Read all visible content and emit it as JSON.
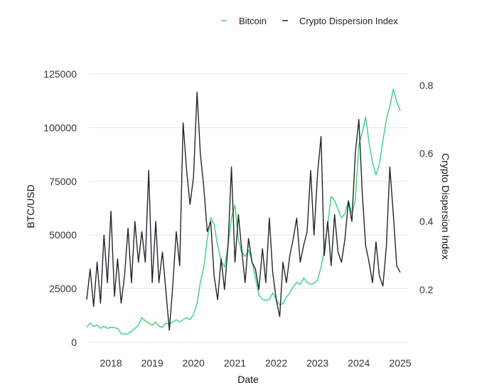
{
  "chart_data": {
    "type": "line",
    "xlabel": "Date",
    "x_ticks": [
      "2018",
      "2019",
      "2020",
      "2021",
      "2022",
      "2023",
      "2024",
      "2025"
    ],
    "x_range": [
      "2017-06",
      "2025-01"
    ],
    "ylabel_left": "BTC/USD",
    "y_left_ticks": [
      "0",
      "25000",
      "50000",
      "75000",
      "100000",
      "125000"
    ],
    "y_left_range": [
      0,
      125000
    ],
    "ylabel_right": "Crypto Dispersion Index",
    "y_right_ticks": [
      "0.2",
      "0.4",
      "0.6",
      "0.8"
    ],
    "y_right_range": [
      0.03,
      0.8
    ],
    "grid": "horizontal",
    "legend_position": "top-right",
    "series": [
      {
        "name": "Bitcoin",
        "axis": "left",
        "color": "#3dcf7e",
        "points": [
          [
            "2017-06-01",
            7000
          ],
          [
            "2017-07-01",
            9000
          ],
          [
            "2017-08-01",
            7500
          ],
          [
            "2017-09-01",
            8000
          ],
          [
            "2017-10-01",
            6500
          ],
          [
            "2017-11-01",
            7500
          ],
          [
            "2017-12-01",
            6500
          ],
          [
            "2018-01-01",
            7000
          ],
          [
            "2018-02-01",
            6800
          ],
          [
            "2018-03-01",
            6500
          ],
          [
            "2018-04-01",
            4000
          ],
          [
            "2018-05-01",
            3800
          ],
          [
            "2018-06-01",
            4000
          ],
          [
            "2018-07-01",
            5000
          ],
          [
            "2018-08-01",
            6500
          ],
          [
            "2018-09-01",
            8000
          ],
          [
            "2018-10-01",
            11500
          ],
          [
            "2018-11-01",
            10000
          ],
          [
            "2018-12-01",
            9000
          ],
          [
            "2019-01-01",
            8000
          ],
          [
            "2019-02-01",
            9500
          ],
          [
            "2019-03-01",
            7500
          ],
          [
            "2019-04-01",
            7000
          ],
          [
            "2019-05-01",
            9000
          ],
          [
            "2019-06-01",
            8500
          ],
          [
            "2019-07-01",
            9500
          ],
          [
            "2019-08-01",
            10500
          ],
          [
            "2019-09-01",
            9500
          ],
          [
            "2019-10-01",
            10500
          ],
          [
            "2019-11-01",
            11500
          ],
          [
            "2019-12-01",
            10500
          ],
          [
            "2020-01-01",
            13000
          ],
          [
            "2020-02-01",
            18000
          ],
          [
            "2020-03-01",
            28000
          ],
          [
            "2020-04-01",
            35000
          ],
          [
            "2020-05-01",
            48000
          ],
          [
            "2020-06-01",
            58000
          ],
          [
            "2020-07-01",
            55000
          ],
          [
            "2020-08-01",
            45000
          ],
          [
            "2020-09-01",
            38000
          ],
          [
            "2020-10-01",
            35000
          ],
          [
            "2020-11-01",
            45000
          ],
          [
            "2020-12-01",
            58000
          ],
          [
            "2021-01-01",
            64000
          ],
          [
            "2021-02-01",
            48000
          ],
          [
            "2021-03-01",
            42000
          ],
          [
            "2021-04-01",
            40000
          ],
          [
            "2021-05-01",
            43000
          ],
          [
            "2021-06-01",
            38000
          ],
          [
            "2021-07-01",
            30000
          ],
          [
            "2021-08-01",
            22000
          ],
          [
            "2021-09-01",
            20000
          ],
          [
            "2021-10-01",
            19500
          ],
          [
            "2021-11-01",
            20000
          ],
          [
            "2021-12-01",
            23000
          ],
          [
            "2022-01-01",
            20000
          ],
          [
            "2022-02-01",
            17500
          ],
          [
            "2022-03-01",
            18000
          ],
          [
            "2022-04-01",
            21000
          ],
          [
            "2022-05-01",
            23000
          ],
          [
            "2022-06-01",
            26000
          ],
          [
            "2022-07-01",
            28000
          ],
          [
            "2022-08-01",
            27000
          ],
          [
            "2022-09-01",
            30000
          ],
          [
            "2022-10-01",
            28000
          ],
          [
            "2022-11-01",
            27000
          ],
          [
            "2022-12-01",
            27500
          ],
          [
            "2023-01-01",
            29000
          ],
          [
            "2023-02-01",
            35000
          ],
          [
            "2023-03-01",
            43000
          ],
          [
            "2023-04-01",
            55000
          ],
          [
            "2023-05-01",
            68000
          ],
          [
            "2023-06-01",
            66000
          ],
          [
            "2023-07-01",
            62000
          ],
          [
            "2023-08-01",
            58000
          ],
          [
            "2023-09-01",
            60000
          ],
          [
            "2023-10-01",
            66000
          ],
          [
            "2023-11-01",
            60000
          ],
          [
            "2023-12-01",
            66000
          ],
          [
            "2024-01-01",
            92000
          ],
          [
            "2024-02-01",
            98000
          ],
          [
            "2024-03-01",
            105000
          ],
          [
            "2024-04-01",
            93000
          ],
          [
            "2024-05-01",
            84000
          ],
          [
            "2024-06-01",
            78000
          ],
          [
            "2024-07-01",
            83000
          ],
          [
            "2024-08-01",
            94000
          ],
          [
            "2024-09-01",
            104000
          ],
          [
            "2024-10-01",
            110000
          ],
          [
            "2024-11-01",
            118000
          ],
          [
            "2024-12-01",
            112000
          ],
          [
            "2025-01-01",
            108000
          ]
        ]
      },
      {
        "name": "Crypto Dispersion Index",
        "axis": "right",
        "color": "#22262b",
        "points": [
          [
            "2017-06-01",
            0.17
          ],
          [
            "2017-07-01",
            0.26
          ],
          [
            "2017-08-01",
            0.15
          ],
          [
            "2017-09-01",
            0.28
          ],
          [
            "2017-10-01",
            0.16
          ],
          [
            "2017-11-01",
            0.36
          ],
          [
            "2017-12-01",
            0.22
          ],
          [
            "2018-01-01",
            0.43
          ],
          [
            "2018-02-01",
            0.18
          ],
          [
            "2018-03-01",
            0.29
          ],
          [
            "2018-04-01",
            0.16
          ],
          [
            "2018-05-01",
            0.24
          ],
          [
            "2018-06-01",
            0.38
          ],
          [
            "2018-07-01",
            0.22
          ],
          [
            "2018-08-01",
            0.4
          ],
          [
            "2018-09-01",
            0.28
          ],
          [
            "2018-10-01",
            0.37
          ],
          [
            "2018-11-01",
            0.28
          ],
          [
            "2018-12-01",
            0.55
          ],
          [
            "2019-01-01",
            0.22
          ],
          [
            "2019-02-01",
            0.4
          ],
          [
            "2019-03-01",
            0.22
          ],
          [
            "2019-04-01",
            0.31
          ],
          [
            "2019-05-01",
            0.2
          ],
          [
            "2019-06-01",
            0.08
          ],
          [
            "2019-07-01",
            0.21
          ],
          [
            "2019-08-01",
            0.37
          ],
          [
            "2019-09-01",
            0.27
          ],
          [
            "2019-10-01",
            0.69
          ],
          [
            "2019-11-01",
            0.55
          ],
          [
            "2019-12-01",
            0.45
          ],
          [
            "2020-01-01",
            0.53
          ],
          [
            "2020-02-01",
            0.78
          ],
          [
            "2020-03-01",
            0.6
          ],
          [
            "2020-04-01",
            0.5
          ],
          [
            "2020-05-01",
            0.37
          ],
          [
            "2020-06-01",
            0.4
          ],
          [
            "2020-07-01",
            0.24
          ],
          [
            "2020-08-01",
            0.17
          ],
          [
            "2020-09-01",
            0.29
          ],
          [
            "2020-10-01",
            0.2
          ],
          [
            "2020-11-01",
            0.33
          ],
          [
            "2020-12-01",
            0.56
          ],
          [
            "2021-01-01",
            0.28
          ],
          [
            "2021-02-01",
            0.42
          ],
          [
            "2021-03-01",
            0.32
          ],
          [
            "2021-04-01",
            0.22
          ],
          [
            "2021-05-01",
            0.35
          ],
          [
            "2021-06-01",
            0.28
          ],
          [
            "2021-07-01",
            0.26
          ],
          [
            "2021-08-01",
            0.2
          ],
          [
            "2021-09-01",
            0.32
          ],
          [
            "2021-10-01",
            0.22
          ],
          [
            "2021-11-01",
            0.41
          ],
          [
            "2021-12-01",
            0.25
          ],
          [
            "2022-01-01",
            0.17
          ],
          [
            "2022-02-01",
            0.12
          ],
          [
            "2022-03-01",
            0.28
          ],
          [
            "2022-04-01",
            0.22
          ],
          [
            "2022-05-01",
            0.3
          ],
          [
            "2022-06-01",
            0.35
          ],
          [
            "2022-07-01",
            0.41
          ],
          [
            "2022-08-01",
            0.28
          ],
          [
            "2022-09-01",
            0.33
          ],
          [
            "2022-10-01",
            0.37
          ],
          [
            "2022-11-01",
            0.55
          ],
          [
            "2022-12-01",
            0.36
          ],
          [
            "2023-01-01",
            0.54
          ],
          [
            "2023-02-01",
            0.65
          ],
          [
            "2023-03-01",
            0.3
          ],
          [
            "2023-04-01",
            0.4
          ],
          [
            "2023-05-01",
            0.27
          ],
          [
            "2023-06-01",
            0.42
          ],
          [
            "2023-07-01",
            0.31
          ],
          [
            "2023-08-01",
            0.28
          ],
          [
            "2023-09-01",
            0.35
          ],
          [
            "2023-10-01",
            0.46
          ],
          [
            "2023-11-01",
            0.4
          ],
          [
            "2023-12-01",
            0.6
          ],
          [
            "2024-01-01",
            0.7
          ],
          [
            "2024-02-01",
            0.48
          ],
          [
            "2024-03-01",
            0.33
          ],
          [
            "2024-04-01",
            0.28
          ],
          [
            "2024-05-01",
            0.22
          ],
          [
            "2024-06-01",
            0.34
          ],
          [
            "2024-07-01",
            0.24
          ],
          [
            "2024-08-01",
            0.21
          ],
          [
            "2024-09-01",
            0.33
          ],
          [
            "2024-10-01",
            0.56
          ],
          [
            "2024-11-01",
            0.42
          ],
          [
            "2024-12-01",
            0.27
          ],
          [
            "2025-01-01",
            0.25
          ]
        ]
      }
    ]
  }
}
